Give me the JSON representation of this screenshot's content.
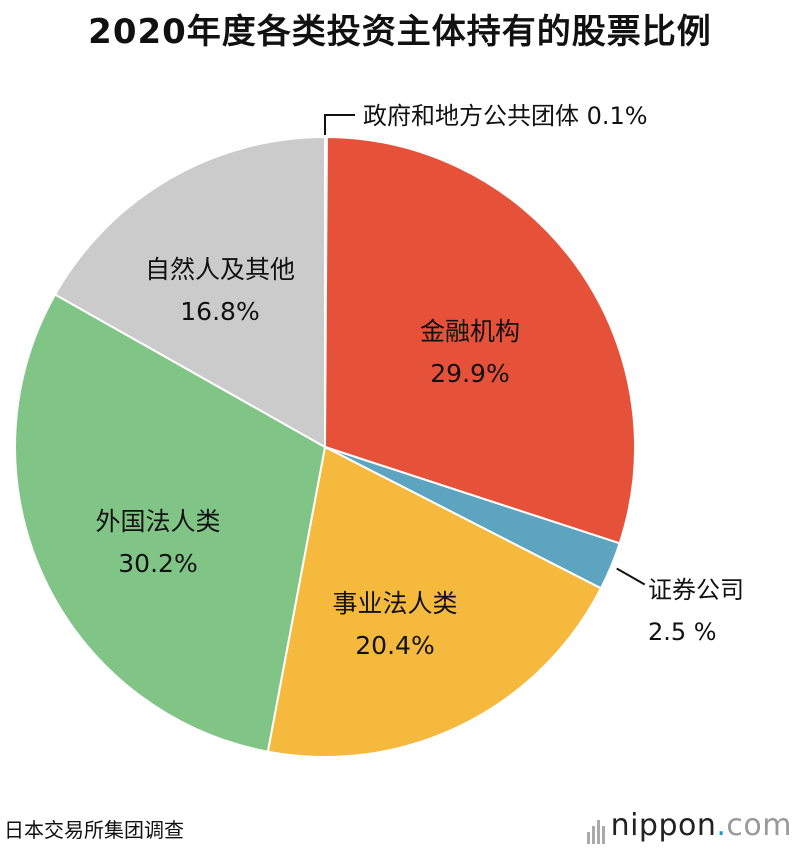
{
  "title": "2020年度各类投资主体持有的股票比例",
  "source": "日本交易所集团调查",
  "brand": {
    "name": "nippon",
    "dot": ".",
    "tld": "com"
  },
  "chart_data": {
    "type": "pie",
    "title": "2020年度各类投资主体持有的股票比例",
    "slices": [
      {
        "name": "政府和地方公共团体",
        "value": 0.1,
        "label": "0.1%",
        "color": "#e6513a",
        "callout": true
      },
      {
        "name": "金融机构",
        "value": 29.9,
        "label": "29.9%",
        "color": "#e6513a"
      },
      {
        "name": "证券公司",
        "value": 2.5,
        "label": "2.5 %",
        "color": "#5ca4c0",
        "callout": true
      },
      {
        "name": "事业法人类",
        "value": 20.4,
        "label": "20.4%",
        "color": "#f5b93d"
      },
      {
        "name": "外国法人类",
        "value": 30.2,
        "label": "30.2%",
        "color": "#80c586"
      },
      {
        "name": "自然人及其他",
        "value": 16.8,
        "label": "16.8%",
        "color": "#cbcbcb"
      }
    ]
  }
}
